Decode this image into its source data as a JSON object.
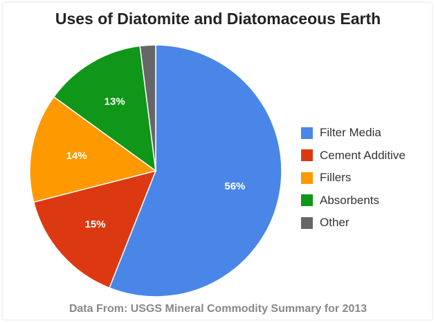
{
  "chart_data": {
    "type": "pie",
    "title": "Uses of Diatomite and Diatomaceous Earth",
    "legend_position": "right",
    "slices": [
      {
        "name": "Filter Media",
        "value": 56,
        "label": "56%",
        "color": "#4a86e8"
      },
      {
        "name": "Cement Additive",
        "value": 15,
        "label": "15%",
        "color": "#dc3912"
      },
      {
        "name": "Fillers",
        "value": 14,
        "label": "14%",
        "color": "#ff9900"
      },
      {
        "name": "Absorbents",
        "value": 13,
        "label": "13%",
        "color": "#109618"
      },
      {
        "name": "Other",
        "value": 2,
        "label": "",
        "color": "#666666"
      }
    ],
    "source": "Data From:  USGS Mineral Commodity Summary for 2013"
  }
}
